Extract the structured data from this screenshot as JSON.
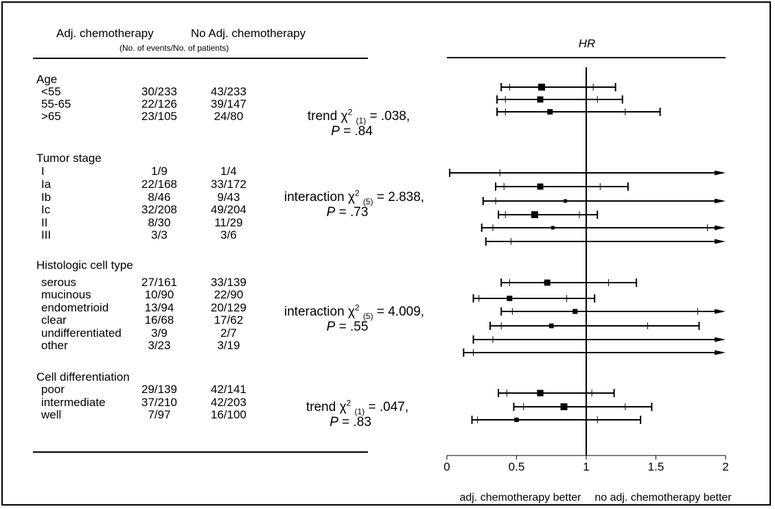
{
  "headers": {
    "adj": "Adj. chemotherapy",
    "noadj": "No Adj. chemotherapy",
    "sub": "(No. of  events/No. of patients)",
    "hr": "HR"
  },
  "groups": [
    {
      "name": "Age",
      "rows": [
        {
          "label": "<55",
          "adj": "30/233",
          "noadj": "43/233"
        },
        {
          "label": "55-65",
          "adj": "22/126",
          "noadj": "39/147"
        },
        {
          "label": ">65",
          "adj": "23/105",
          "noadj": "24/80"
        }
      ],
      "stat": {
        "test": "trend",
        "df": "(1)",
        "value": "= .038,",
        "p": "= .84"
      }
    },
    {
      "name": "Tumor stage",
      "rows": [
        {
          "label": "I",
          "adj": "1/9",
          "noadj": "1/4"
        },
        {
          "label": "Ia",
          "adj": "22/168",
          "noadj": "33/172"
        },
        {
          "label": "Ib",
          "adj": "8/46",
          "noadj": "9/43"
        },
        {
          "label": "Ic",
          "adj": "32/208",
          "noadj": "49/204"
        },
        {
          "label": "II",
          "adj": "8/30",
          "noadj": "11/29"
        },
        {
          "label": "III",
          "adj": "3/3",
          "noadj": "3/6"
        }
      ],
      "stat": {
        "test": "interaction",
        "df": "(5)",
        "value": "= 2.838,",
        "p": "= .73"
      }
    },
    {
      "name": "Histologic cell type",
      "rows": [
        {
          "label": "serous",
          "adj": "27/161",
          "noadj": "33/139"
        },
        {
          "label": "mucinous",
          "adj": "10/90",
          "noadj": "22/90"
        },
        {
          "label": "endometrioid",
          "adj": "13/94",
          "noadj": "20/129"
        },
        {
          "label": "clear",
          "adj": "16/68",
          "noadj": "17/62"
        },
        {
          "label": "undifferentiated",
          "adj": "3/9",
          "noadj": "2/7"
        },
        {
          "label": "other",
          "adj": "3/23",
          "noadj": "3/19"
        }
      ],
      "stat": {
        "test": "interaction",
        "df": "(5)",
        "value": "= 4.009,",
        "p": "= .55"
      }
    },
    {
      "name": "Cell differentiation",
      "rows": [
        {
          "label": "poor",
          "adj": "29/139",
          "noadj": "42/141"
        },
        {
          "label": "intermediate",
          "adj": "37/210",
          "noadj": "42/203"
        },
        {
          "label": "well",
          "adj": "7/97",
          "noadj": "16/100"
        }
      ],
      "stat": {
        "test": "trend",
        "df": "(1)",
        "value": "= .047,",
        "p": "= .83"
      }
    }
  ],
  "stat_symbols": {
    "chi": "χ",
    "sq": "2",
    "p": "P"
  },
  "chart_data": {
    "type": "forest",
    "xlim": [
      0,
      2
    ],
    "xticks": [
      "0",
      "0.5",
      "1",
      "1.5",
      "2"
    ],
    "reference_line": 1,
    "xlabel_left": "adj. chemotherapy  better",
    "xlabel_right": "no adj. chemotherapy better",
    "hr_label": "HR",
    "rows": [
      {
        "name": "<55",
        "hr": 0.68,
        "ci_inner": [
          0.45,
          1.05
        ],
        "ci_outer": [
          0.39,
          1.21
        ],
        "weight": 1.0,
        "arrow": false
      },
      {
        "name": "55-65",
        "hr": 0.67,
        "ci_inner": [
          0.42,
          1.08
        ],
        "ci_outer": [
          0.36,
          1.26
        ],
        "weight": 0.85,
        "arrow": false
      },
      {
        "name": ">65",
        "hr": 0.74,
        "ci_inner": [
          0.42,
          1.28
        ],
        "ci_outer": [
          0.36,
          1.53
        ],
        "weight": 0.7,
        "arrow": false
      },
      {
        "name": "I",
        "hr": null,
        "ci_inner": [
          0.38,
          2.0
        ],
        "ci_outer": [
          0.02,
          2.0
        ],
        "weight": 0,
        "arrow": true
      },
      {
        "name": "Ia",
        "hr": 0.67,
        "ci_inner": [
          0.41,
          1.1
        ],
        "ci_outer": [
          0.35,
          1.3
        ],
        "weight": 0.85,
        "arrow": false
      },
      {
        "name": "Ib",
        "hr": 0.85,
        "ci_inner": [
          0.35,
          2.0
        ],
        "ci_outer": [
          0.26,
          2.0
        ],
        "weight": 0.3,
        "arrow": true
      },
      {
        "name": "Ic",
        "hr": 0.63,
        "ci_inner": [
          0.42,
          0.95
        ],
        "ci_outer": [
          0.37,
          1.08
        ],
        "weight": 1.0,
        "arrow": false
      },
      {
        "name": "II",
        "hr": 0.76,
        "ci_inner": [
          0.33,
          1.87
        ],
        "ci_outer": [
          0.25,
          2.0
        ],
        "weight": 0.3,
        "arrow": true
      },
      {
        "name": "III",
        "hr": null,
        "ci_inner": [
          0.46,
          2.0
        ],
        "ci_outer": [
          0.28,
          2.0
        ],
        "weight": 0,
        "arrow": true
      },
      {
        "name": "serous",
        "hr": 0.72,
        "ci_inner": [
          0.45,
          1.16
        ],
        "ci_outer": [
          0.39,
          1.36
        ],
        "weight": 0.85,
        "arrow": false
      },
      {
        "name": "mucinous",
        "hr": 0.45,
        "ci_inner": [
          0.23,
          0.86
        ],
        "ci_outer": [
          0.19,
          1.06
        ],
        "weight": 0.7,
        "arrow": false
      },
      {
        "name": "endometrioid",
        "hr": 0.92,
        "ci_inner": [
          0.47,
          1.8
        ],
        "ci_outer": [
          0.39,
          2.0
        ],
        "weight": 0.6,
        "arrow": true
      },
      {
        "name": "clear",
        "hr": 0.75,
        "ci_inner": [
          0.39,
          1.44
        ],
        "ci_outer": [
          0.31,
          1.81
        ],
        "weight": 0.55,
        "arrow": false
      },
      {
        "name": "undifferentiated",
        "hr": null,
        "ci_inner": [
          0.33,
          2.0
        ],
        "ci_outer": [
          0.19,
          2.0
        ],
        "weight": 0,
        "arrow": true
      },
      {
        "name": "other",
        "hr": null,
        "ci_inner": [
          0.19,
          2.0
        ],
        "ci_outer": [
          0.12,
          2.0
        ],
        "weight": 0,
        "arrow": true
      },
      {
        "name": "poor",
        "hr": 0.67,
        "ci_inner": [
          0.43,
          1.04
        ],
        "ci_outer": [
          0.37,
          1.2
        ],
        "weight": 0.9,
        "arrow": false
      },
      {
        "name": "intermediate",
        "hr": 0.84,
        "ci_inner": [
          0.55,
          1.28
        ],
        "ci_outer": [
          0.48,
          1.47
        ],
        "weight": 1.0,
        "arrow": false
      },
      {
        "name": "well",
        "hr": 0.5,
        "ci_inner": [
          0.22,
          1.08
        ],
        "ci_outer": [
          0.18,
          1.39
        ],
        "weight": 0.5,
        "arrow": false
      }
    ]
  }
}
